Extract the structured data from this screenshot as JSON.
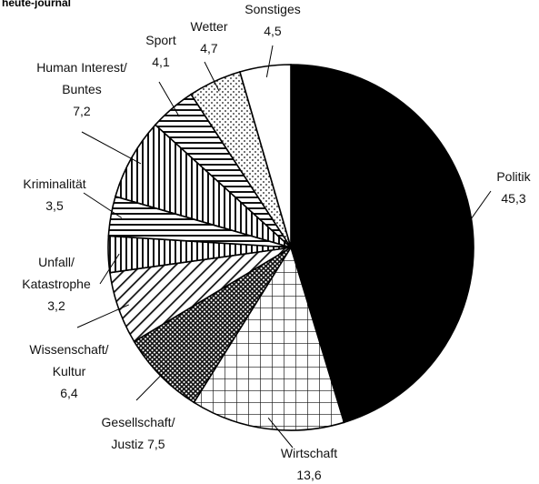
{
  "chart_data": {
    "type": "pie",
    "title": "heute-journal",
    "categories": [
      "Politik",
      "Wirtschaft",
      "Gesellschaft/\nJustiz",
      "Wissenschaft/\nKultur",
      "Unfall/\nKatastrophe",
      "Kriminalität",
      "Human Interest/\nBuntes",
      "Sport",
      "Wetter",
      "Sonstiges"
    ],
    "values": [
      45.3,
      13.6,
      7.5,
      6.4,
      3.2,
      3.5,
      7.2,
      4.1,
      4.7,
      4.5
    ],
    "value_labels": [
      "45,3",
      "13,6",
      "7,5",
      "6,4",
      "3,2",
      "3,5",
      "7,2",
      "4,1",
      "4,7",
      "4,5"
    ],
    "patterns": [
      "black",
      "grid",
      "crosshatch",
      "diagonal",
      "vertical",
      "horizontal",
      "vertical",
      "horizontal",
      "dots",
      "white"
    ]
  }
}
